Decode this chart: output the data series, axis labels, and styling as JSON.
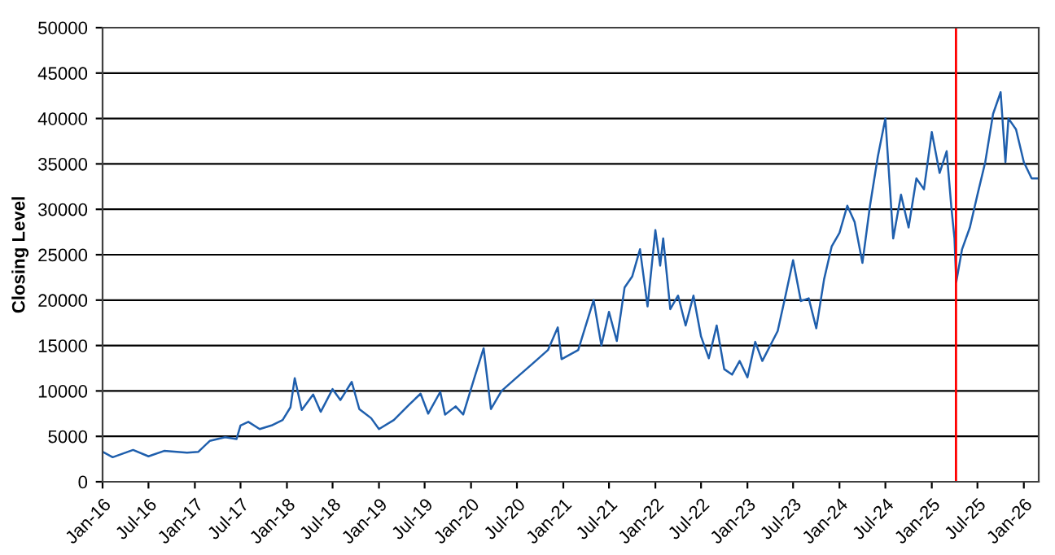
{
  "chart_data": {
    "type": "line",
    "ylabel": "Closing Level",
    "x": [
      "2016-01-01",
      "2016-02-10",
      "2016-05-01",
      "2016-07-01",
      "2016-09-01",
      "2016-12-01",
      "2017-01-15",
      "2017-03-01",
      "2017-05-01",
      "2017-06-15",
      "2017-07-01",
      "2017-08-01",
      "2017-09-15",
      "2017-11-01",
      "2017-12-15",
      "2018-01-15",
      "2018-02-01",
      "2018-03-01",
      "2018-04-15",
      "2018-05-15",
      "2018-07-01",
      "2018-08-01",
      "2018-09-15",
      "2018-10-15",
      "2018-12-01",
      "2019-01-01",
      "2019-03-01",
      "2019-05-01",
      "2019-06-15",
      "2019-07-15",
      "2019-09-01",
      "2019-09-20",
      "2019-11-01",
      "2019-12-01",
      "2020-01-15",
      "2020-02-20",
      "2020-03-20",
      "2020-05-01",
      "2020-07-01",
      "2020-09-01",
      "2020-11-01",
      "2020-12-10",
      "2020-12-25",
      "2021-03-01",
      "2021-05-01",
      "2021-06-01",
      "2021-07-01",
      "2021-08-01",
      "2021-09-01",
      "2021-10-01",
      "2021-11-01",
      "2021-12-01",
      "2022-01-01",
      "2022-01-20",
      "2022-02-01",
      "2022-03-01",
      "2022-04-01",
      "2022-05-01",
      "2022-06-01",
      "2022-07-01",
      "2022-08-01",
      "2022-09-01",
      "2022-10-01",
      "2022-11-01",
      "2022-12-01",
      "2023-01-01",
      "2023-02-01",
      "2023-03-01",
      "2023-05-01",
      "2023-06-01",
      "2023-07-01",
      "2023-08-01",
      "2023-09-01",
      "2023-10-01",
      "2023-11-01",
      "2023-12-01",
      "2024-01-01",
      "2024-02-01",
      "2024-03-01",
      "2024-04-01",
      "2024-05-01",
      "2024-06-01",
      "2024-07-01",
      "2024-08-01",
      "2024-09-01",
      "2024-10-01",
      "2024-11-01",
      "2024-12-01",
      "2025-01-01",
      "2025-02-01",
      "2025-03-01",
      "2025-03-20",
      "2025-04-01",
      "2025-04-08",
      "2025-05-01",
      "2025-06-01",
      "2025-07-01",
      "2025-08-01",
      "2025-09-01",
      "2025-10-01",
      "2025-10-20",
      "2025-11-01",
      "2025-12-01",
      "2026-01-01",
      "2026-02-01",
      "2026-03-01"
    ],
    "series": [
      {
        "color": "#1f5fad",
        "values": [
          3300,
          2700,
          3500,
          2800,
          3400,
          3200,
          3300,
          4500,
          4900,
          4700,
          6200,
          6600,
          5800,
          6200,
          6800,
          8200,
          11400,
          7900,
          9600,
          7700,
          10200,
          9000,
          11000,
          8000,
          7000,
          5800,
          6800,
          8500,
          9700,
          7500,
          9900,
          7400,
          8300,
          7400,
          11500,
          14700,
          8000,
          10000,
          11500,
          13000,
          14500,
          17000,
          13500,
          14500,
          20000,
          15000,
          18700,
          15500,
          21400,
          22600,
          25600,
          19300,
          27700,
          23800,
          26800,
          19000,
          20500,
          17200,
          20500,
          16000,
          13600,
          17200,
          12400,
          11800,
          13300,
          11500,
          15400,
          13300,
          16600,
          20500,
          24400,
          19900,
          20200,
          16900,
          22300,
          25900,
          27400,
          30400,
          28600,
          24100,
          30400,
          35800,
          40000,
          26800,
          31600,
          28000,
          33400,
          32200,
          38500,
          34000,
          36400,
          30100,
          26800,
          22000,
          25600,
          28000,
          31600,
          35200,
          40500,
          42900,
          35200,
          40000,
          38800,
          35200,
          33400,
          33400
        ]
      }
    ],
    "xlim": [
      "2016-01-01",
      "2026-03-01"
    ],
    "xticks": [
      {
        "value": "2016-01-01",
        "label": "Jan-16"
      },
      {
        "value": "2016-07-01",
        "label": "Jul-16"
      },
      {
        "value": "2017-01-01",
        "label": "Jan-17"
      },
      {
        "value": "2017-07-01",
        "label": "Jul-17"
      },
      {
        "value": "2018-01-01",
        "label": "Jan-18"
      },
      {
        "value": "2018-07-01",
        "label": "Jul-18"
      },
      {
        "value": "2019-01-01",
        "label": "Jan-19"
      },
      {
        "value": "2019-07-01",
        "label": "Jul-19"
      },
      {
        "value": "2020-01-01",
        "label": "Jan-20"
      },
      {
        "value": "2020-07-01",
        "label": "Jul-20"
      },
      {
        "value": "2021-01-01",
        "label": "Jan-21"
      },
      {
        "value": "2021-07-01",
        "label": "Jul-21"
      },
      {
        "value": "2022-01-01",
        "label": "Jan-22"
      },
      {
        "value": "2022-07-01",
        "label": "Jul-22"
      },
      {
        "value": "2023-01-01",
        "label": "Jan-23"
      },
      {
        "value": "2023-07-01",
        "label": "Jul-23"
      },
      {
        "value": "2024-01-01",
        "label": "Jan-24"
      },
      {
        "value": "2024-07-01",
        "label": "Jul-24"
      },
      {
        "value": "2025-01-01",
        "label": "Jan-25"
      },
      {
        "value": "2025-07-01",
        "label": "Jul-25"
      },
      {
        "value": "2026-01-01",
        "label": "Jan-26"
      }
    ],
    "ylim": [
      0,
      50000
    ],
    "yticks": [
      0,
      5000,
      10000,
      15000,
      20000,
      25000,
      30000,
      35000,
      40000,
      45000,
      50000
    ],
    "grid": "y",
    "ref_lines": [
      {
        "axis": "x",
        "value": "2025-04-07",
        "color": "#ff0000"
      }
    ]
  }
}
